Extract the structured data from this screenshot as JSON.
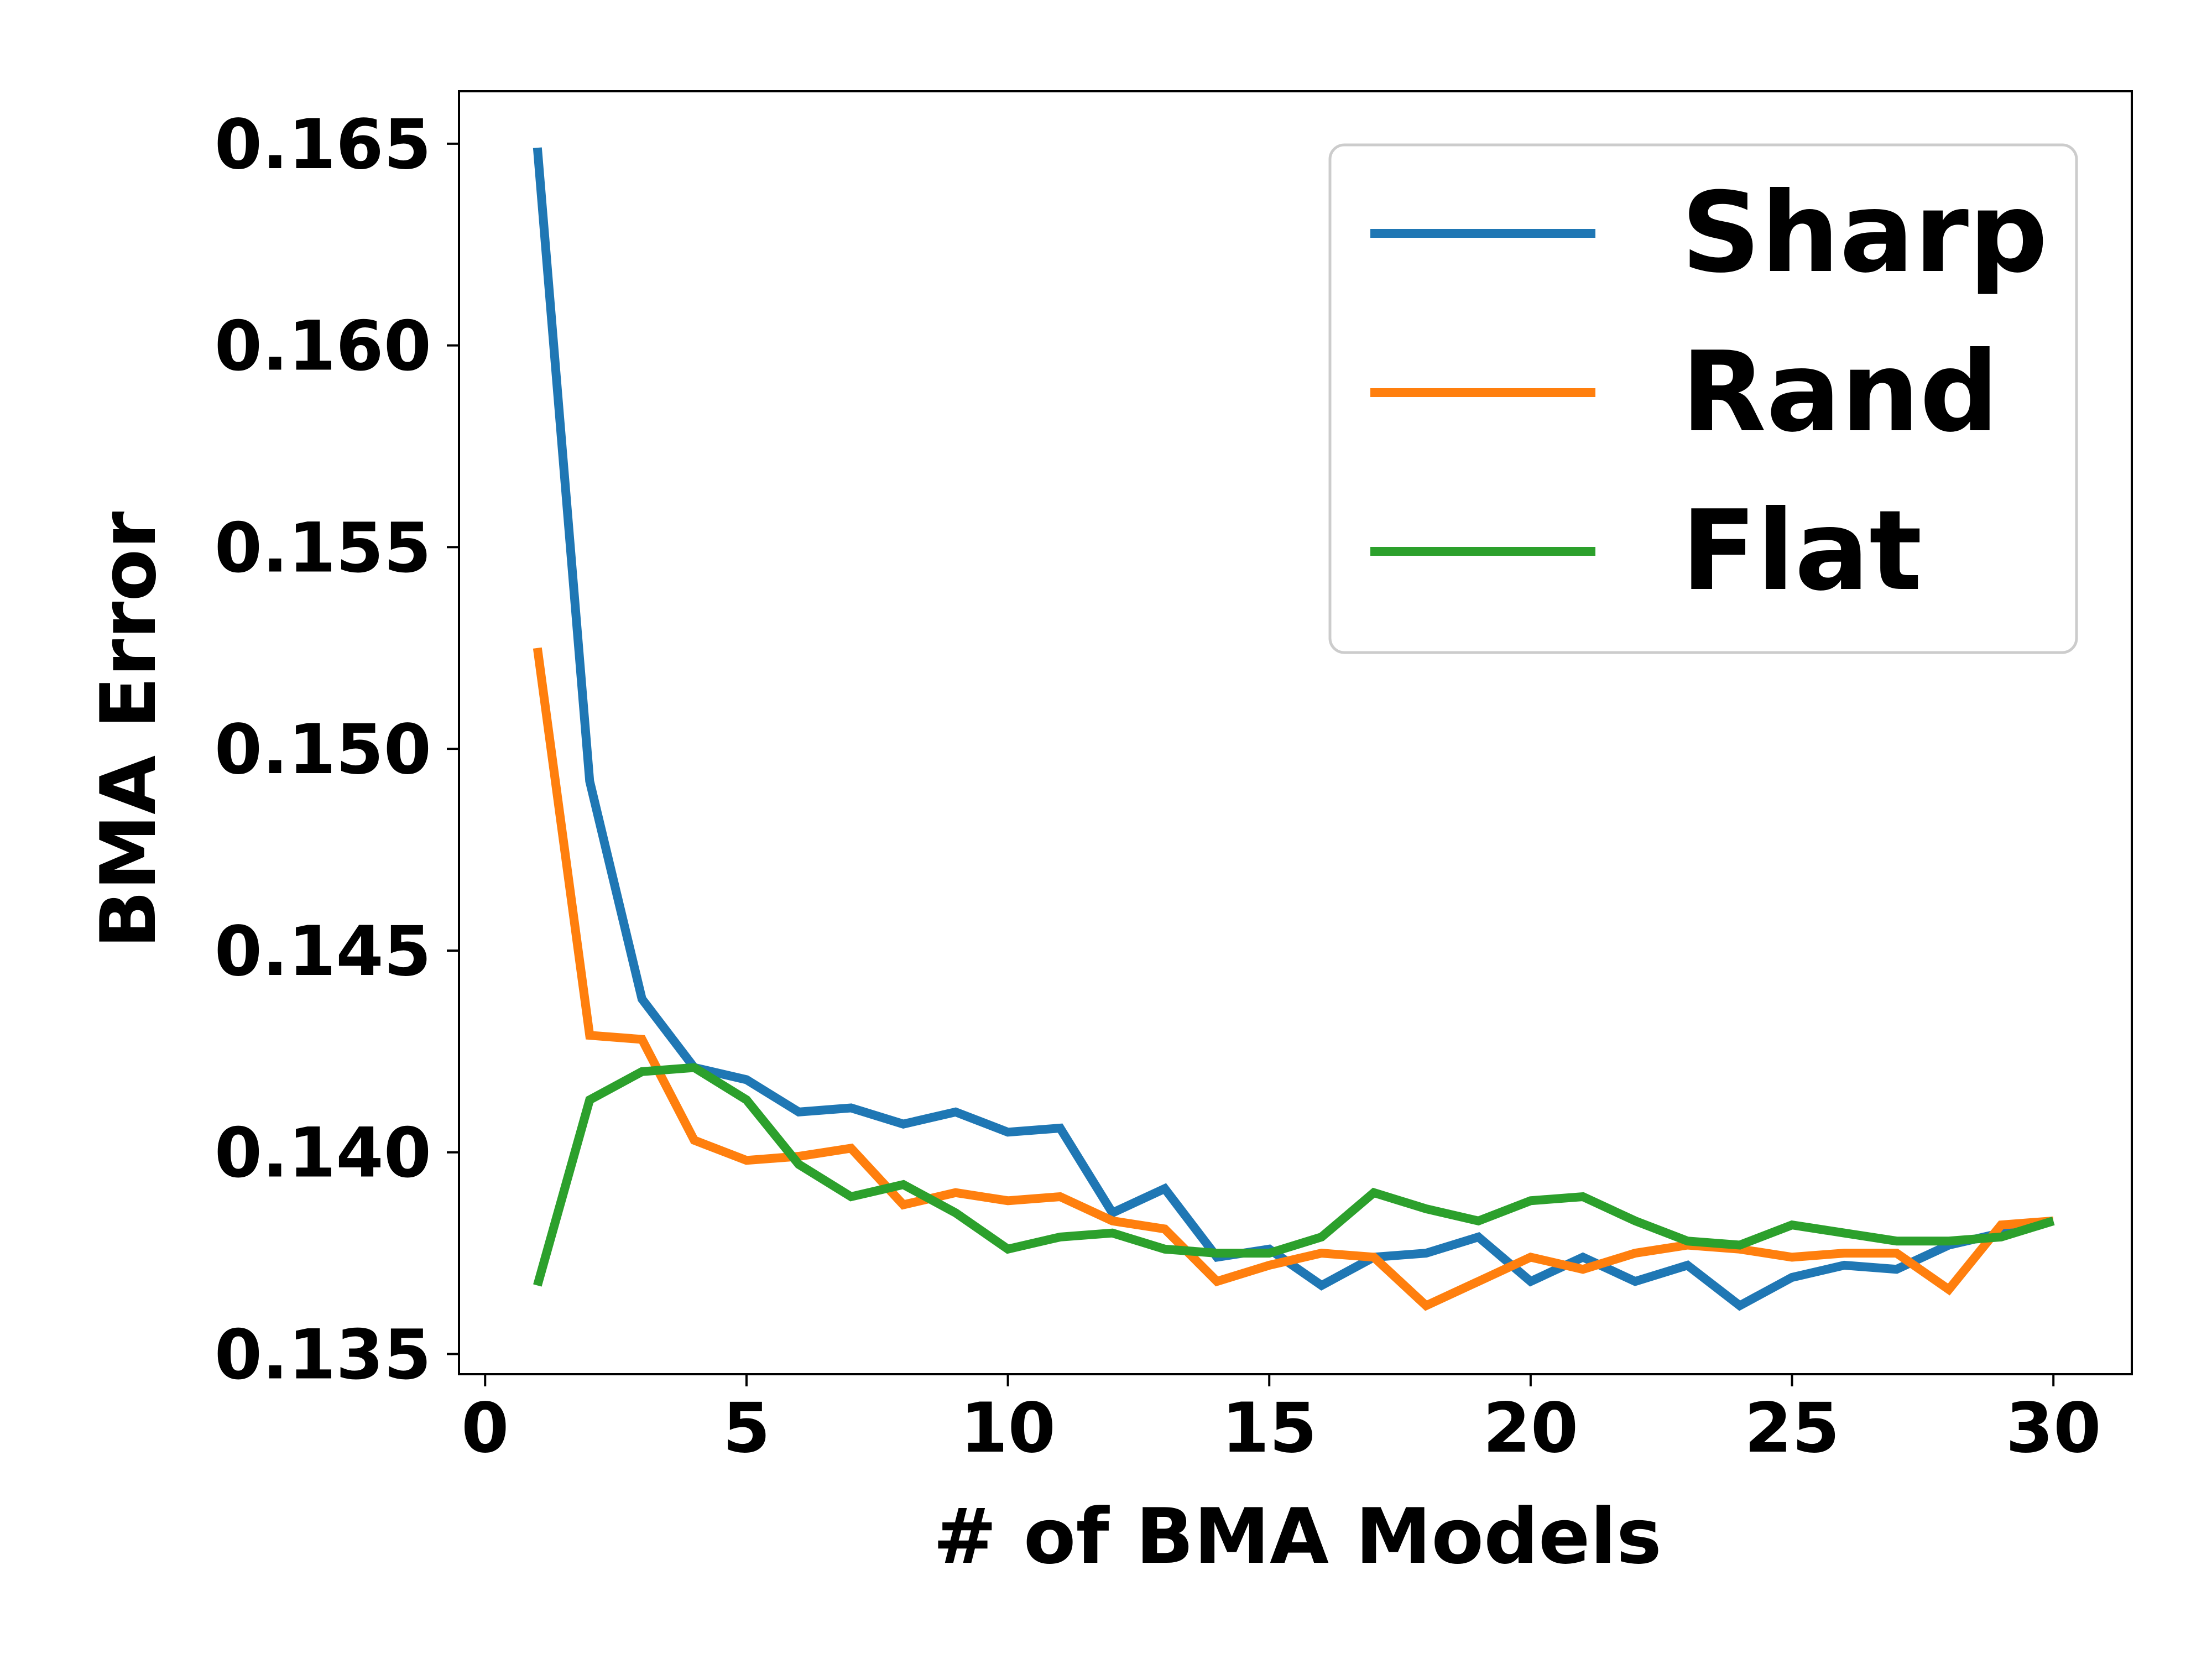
{
  "chart_data": {
    "type": "line",
    "xlabel": "# of BMA Models",
    "ylabel": "BMA Error",
    "xlim": [
      -0.5,
      31.5
    ],
    "ylim": [
      0.1345,
      0.1663
    ],
    "xticks": [
      0,
      5,
      10,
      15,
      20,
      25,
      30
    ],
    "xtick_labels": [
      "0",
      "5",
      "10",
      "15",
      "20",
      "25",
      "30"
    ],
    "yticks": [
      0.135,
      0.14,
      0.145,
      0.15,
      0.155,
      0.16,
      0.165
    ],
    "ytick_labels": [
      "0.135",
      "0.140",
      "0.145",
      "0.150",
      "0.155",
      "0.160",
      "0.165"
    ],
    "grid": false,
    "legend_position": "top-right",
    "x": [
      1,
      2,
      3,
      4,
      5,
      6,
      7,
      8,
      9,
      10,
      11,
      12,
      13,
      14,
      15,
      16,
      17,
      18,
      19,
      20,
      21,
      22,
      23,
      24,
      25,
      26,
      27,
      28,
      29,
      30
    ],
    "series": [
      {
        "name": "Sharp",
        "color": "#1f77b4",
        "values": [
          0.1649,
          0.1492,
          0.1438,
          0.1421,
          0.1418,
          0.141,
          0.1411,
          0.1407,
          0.141,
          0.1405,
          0.1406,
          0.1385,
          0.1391,
          0.1374,
          0.1376,
          0.1367,
          0.1374,
          0.1375,
          0.1379,
          0.1368,
          0.1374,
          0.1368,
          0.1372,
          0.1362,
          0.1369,
          0.1372,
          0.1371,
          0.1377,
          0.138,
          0.1383
        ]
      },
      {
        "name": "Rand",
        "color": "#ff7f0e",
        "values": [
          0.1525,
          0.1429,
          0.1428,
          0.1403,
          0.1398,
          0.1399,
          0.1401,
          0.1387,
          0.139,
          0.1388,
          0.1389,
          0.1383,
          0.1381,
          0.1368,
          0.1372,
          0.1375,
          0.1374,
          0.1362,
          0.1368,
          0.1374,
          0.1371,
          0.1375,
          0.1377,
          0.1376,
          0.1374,
          0.1375,
          0.1375,
          0.1366,
          0.1382,
          0.1383
        ]
      },
      {
        "name": "Flat",
        "color": "#2ca02c",
        "values": [
          0.1367,
          0.1413,
          0.142,
          0.1421,
          0.1413,
          0.1397,
          0.1389,
          0.1392,
          0.1385,
          0.1376,
          0.1379,
          0.138,
          0.1376,
          0.1375,
          0.1375,
          0.1379,
          0.139,
          0.1386,
          0.1383,
          0.1388,
          0.1389,
          0.1383,
          0.1378,
          0.1377,
          0.1382,
          0.138,
          0.1378,
          0.1378,
          0.1379,
          0.1383
        ]
      }
    ]
  }
}
